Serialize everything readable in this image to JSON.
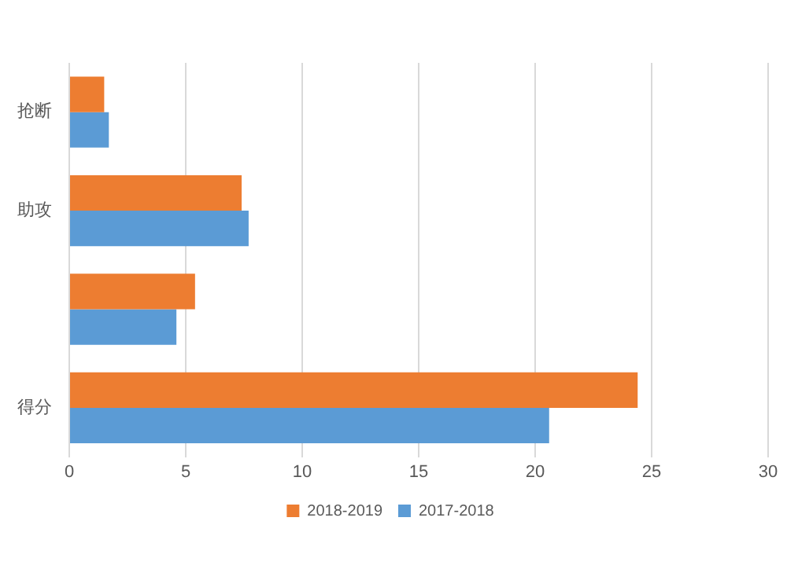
{
  "chart_data": {
    "type": "bar",
    "orientation": "horizontal",
    "categories": [
      "抢断",
      "助攻",
      null,
      "得分"
    ],
    "series": [
      {
        "name": "2018-2019",
        "color": "#ed7d31",
        "values": [
          1.5,
          7.4,
          5.4,
          24.4
        ]
      },
      {
        "name": "2017-2018",
        "color": "#5b9bd5",
        "values": [
          1.7,
          7.7,
          4.6,
          20.6
        ]
      }
    ],
    "xlim": [
      0,
      30
    ],
    "xticks": [
      0,
      5,
      10,
      15,
      20,
      25,
      30
    ],
    "grid": "x",
    "legend": "bottom"
  }
}
